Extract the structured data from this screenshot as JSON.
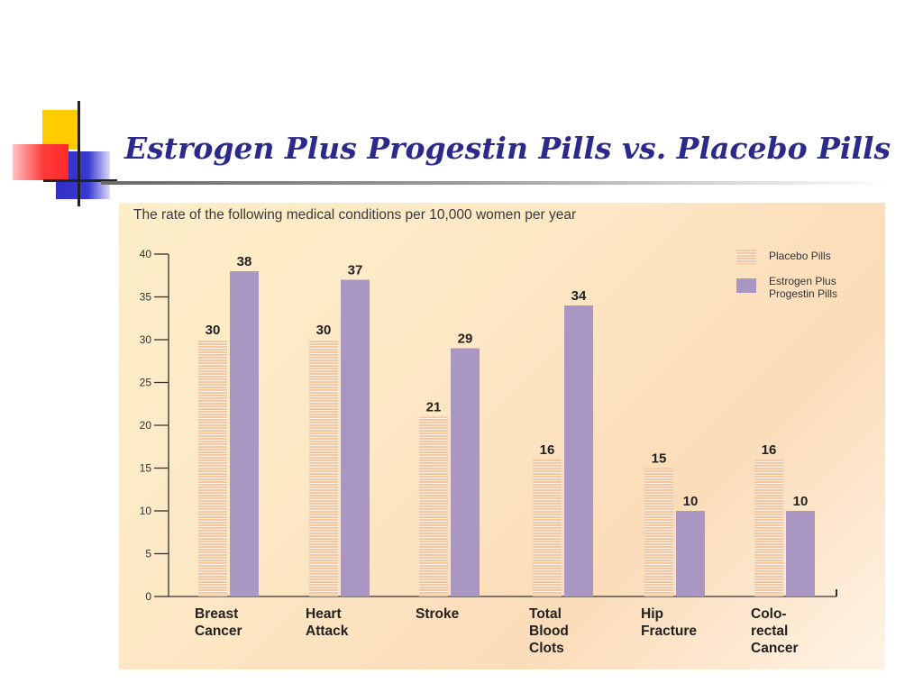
{
  "slide": {
    "title": "Estrogen Plus Progestin Pills vs. Placebo Pills"
  },
  "colors": {
    "title": "#2b2a8c",
    "placebo_stripe": "#f3c7a4",
    "estrogen": "#a996c2",
    "deco_yellow": "#ffcc00",
    "deco_blue": "#3333cc",
    "deco_red": "#ff3333"
  },
  "chart_data": {
    "type": "bar",
    "title": "The rate of the following medical conditions per 10,000 women per year",
    "categories": [
      [
        "Breast",
        "Cancer"
      ],
      [
        "Heart",
        "Attack"
      ],
      [
        "Stroke"
      ],
      [
        "Total",
        "Blood",
        "Clots"
      ],
      [
        "Hip",
        "Fracture"
      ],
      [
        "Colo-",
        "rectal",
        "Cancer"
      ]
    ],
    "series": [
      {
        "name": "Placebo Pills",
        "values": [
          30,
          30,
          21,
          16,
          15,
          16
        ]
      },
      {
        "name": "Estrogen Plus Progestin Pills",
        "values": [
          38,
          37,
          29,
          34,
          10,
          10
        ]
      }
    ],
    "legend": [
      [
        "Placebo Pills"
      ],
      [
        "Estrogen Plus",
        "Progestin Pills"
      ]
    ],
    "ylim": [
      0,
      40
    ],
    "yticks": [
      0,
      5,
      10,
      15,
      20,
      25,
      30,
      35,
      40
    ],
    "legend_position": "top-right",
    "data_labels": true,
    "grid": false
  }
}
